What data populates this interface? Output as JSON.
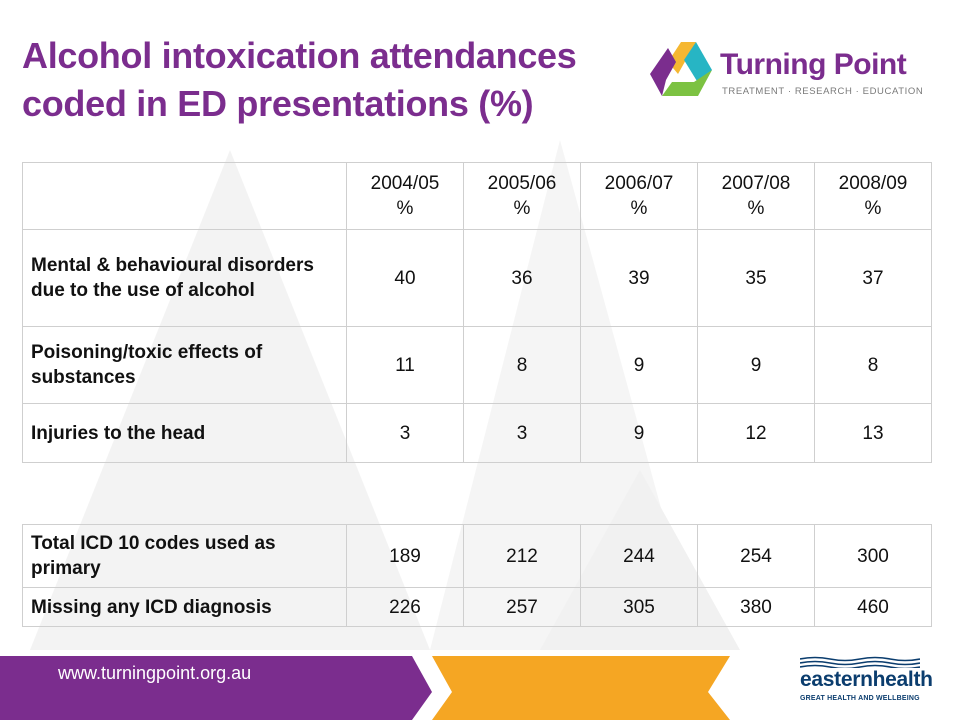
{
  "title": {
    "line1": "Alcohol intoxication attendances",
    "line2": "coded in ED presentations (%)"
  },
  "logo": {
    "name": "Turning Point",
    "tagline": "TREATMENT · RESEARCH · EDUCATION"
  },
  "table1": {
    "headers": [
      "",
      "2004/05\n%",
      "2005/06\n%",
      "2006/07\n%",
      "2007/08\n%",
      "2008/09\n%"
    ],
    "rows": [
      {
        "label": "Mental & behavioural disorders due to the use of alcohol",
        "values": [
          "40",
          "36",
          "39",
          "35",
          "37"
        ]
      },
      {
        "label": "Poisoning/toxic effects of substances",
        "values": [
          "11",
          "8",
          "9",
          "9",
          "8"
        ]
      },
      {
        "label": "Injuries to the head",
        "values": [
          "3",
          "3",
          "9",
          "12",
          "13"
        ]
      }
    ]
  },
  "table2": {
    "rows": [
      {
        "label": "Total ICD 10 codes used as primary",
        "values": [
          "189",
          "212",
          "244",
          "254",
          "300"
        ]
      },
      {
        "label": "Missing any ICD diagnosis",
        "values": [
          "226",
          "257",
          "305",
          "380",
          "460"
        ]
      }
    ]
  },
  "footer": {
    "url": "www.turningpoint.org.au",
    "partner_name_bold": "eastern",
    "partner_name_light": "health",
    "partner_tagline": "GREAT HEALTH AND WELLBEING"
  },
  "colors": {
    "brand_purple": "#7b2d8e",
    "brand_orange": "#f5a623",
    "table_border": "#cfcfcf",
    "partner_blue": "#0b3d6e"
  },
  "icons": [
    "turning-point-logo-icon",
    "eastern-health-logo-icon"
  ]
}
